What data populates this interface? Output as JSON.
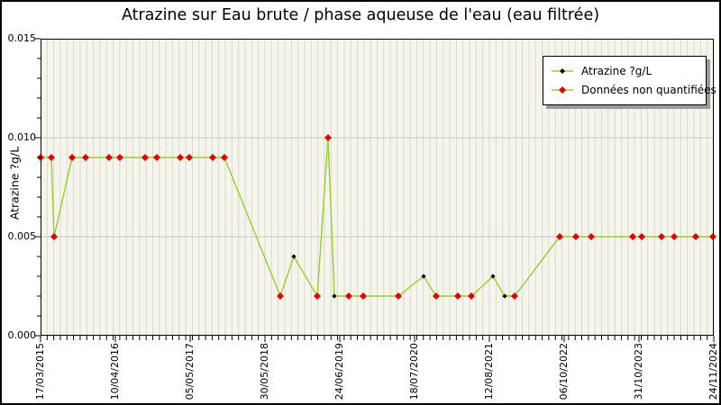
{
  "figure": {
    "title": "Atrazine sur Eau brute / phase aqueuse de l'eau (eau filtrée)",
    "y_axis_title": "Atrazine ?g/L"
  },
  "legend": {
    "items": [
      {
        "label": "Atrazine ?g/L",
        "marker": "black-diamond",
        "marker_color": "#000000",
        "line_color": "#9acd32"
      },
      {
        "label": "Données non quantifiées",
        "marker": "red-diamond",
        "marker_color": "#e60000",
        "line_color": "#9acd32"
      }
    ]
  },
  "chart_data": {
    "type": "line",
    "title": "Atrazine sur Eau brute / phase aqueuse de l'eau (eau filtrée)",
    "xlabel": "",
    "ylabel": "Atrazine ?g/L",
    "ylim": [
      0,
      0.015
    ],
    "y_tick_labels": [
      "0.000",
      "0.005",
      "0.010",
      "0.015"
    ],
    "x_tick_labels": [
      "17/03/2015",
      "10/04/2016",
      "05/05/2017",
      "30/05/2018",
      "24/06/2019",
      "18/07/2020",
      "12/08/2021",
      "06/10/2022",
      "31/10/2023",
      "24/11/2024"
    ],
    "legend_position": "top-right",
    "grid": {
      "vertical_minor_count": 102,
      "horizontal_gridline_values": [
        0.005,
        0.01
      ]
    },
    "colors": {
      "line": "#9acd32",
      "unquantified_marker": "#e60000",
      "quantified_marker": "#000000",
      "plot_background": "#f5f5ec",
      "vertical_gridline": "#d9d9ce",
      "horizontal_gridline": "#c8c8c8",
      "frame": "#000000"
    },
    "series_note": "red diamonds = données non quantifiées (non-quantified), black diamonds = quantified Atrazine ?g/L",
    "points": [
      {
        "x_frac": 0.0,
        "date_approx": "2015-03-17",
        "value": 0.009,
        "quantified": false
      },
      {
        "x_frac": 0.0161,
        "date_approx": "2015-05-13",
        "value": 0.009,
        "quantified": false
      },
      {
        "x_frac": 0.0201,
        "date_approx": "2015-05-27",
        "value": 0.005,
        "quantified": false
      },
      {
        "x_frac": 0.0469,
        "date_approx": "2015-08-30",
        "value": 0.009,
        "quantified": false
      },
      {
        "x_frac": 0.0669,
        "date_approx": "2015-11-09",
        "value": 0.009,
        "quantified": false
      },
      {
        "x_frac": 0.1017,
        "date_approx": "2016-03-12",
        "value": 0.009,
        "quantified": false
      },
      {
        "x_frac": 0.1178,
        "date_approx": "2016-05-08",
        "value": 0.009,
        "quantified": false
      },
      {
        "x_frac": 0.1553,
        "date_approx": "2016-09-18",
        "value": 0.009,
        "quantified": false
      },
      {
        "x_frac": 0.1727,
        "date_approx": "2016-11-18",
        "value": 0.009,
        "quantified": false
      },
      {
        "x_frac": 0.2075,
        "date_approx": "2017-03-22",
        "value": 0.009,
        "quantified": false
      },
      {
        "x_frac": 0.2209,
        "date_approx": "2017-05-08",
        "value": 0.009,
        "quantified": false
      },
      {
        "x_frac": 0.2557,
        "date_approx": "2017-09-08",
        "value": 0.009,
        "quantified": false
      },
      {
        "x_frac": 0.2731,
        "date_approx": "2017-11-09",
        "value": 0.009,
        "quantified": false
      },
      {
        "x_frac": 0.3561,
        "date_approx": "2018-08-30",
        "value": 0.002,
        "quantified": false
      },
      {
        "x_frac": 0.3762,
        "date_approx": "2018-11-10",
        "value": 0.004,
        "quantified": true
      },
      {
        "x_frac": 0.411,
        "date_approx": "2019-03-13",
        "value": 0.002,
        "quantified": false
      },
      {
        "x_frac": 0.4271,
        "date_approx": "2019-05-09",
        "value": 0.01,
        "quantified": false
      },
      {
        "x_frac": 0.4364,
        "date_approx": "2019-06-11",
        "value": 0.002,
        "quantified": true
      },
      {
        "x_frac": 0.4578,
        "date_approx": "2019-08-26",
        "value": 0.002,
        "quantified": false
      },
      {
        "x_frac": 0.4793,
        "date_approx": "2019-11-10",
        "value": 0.002,
        "quantified": false
      },
      {
        "x_frac": 0.5314,
        "date_approx": "2020-05-13",
        "value": 0.002,
        "quantified": false
      },
      {
        "x_frac": 0.5689,
        "date_approx": "2020-09-23",
        "value": 0.003,
        "quantified": true
      },
      {
        "x_frac": 0.5876,
        "date_approx": "2020-11-28",
        "value": 0.002,
        "quantified": false
      },
      {
        "x_frac": 0.6198,
        "date_approx": "2021-03-22",
        "value": 0.002,
        "quantified": false
      },
      {
        "x_frac": 0.6399,
        "date_approx": "2021-06-02",
        "value": 0.002,
        "quantified": false
      },
      {
        "x_frac": 0.672,
        "date_approx": "2021-09-23",
        "value": 0.003,
        "quantified": true
      },
      {
        "x_frac": 0.6894,
        "date_approx": "2021-11-24",
        "value": 0.002,
        "quantified": true
      },
      {
        "x_frac": 0.7041,
        "date_approx": "2022-01-15",
        "value": 0.002,
        "quantified": false
      },
      {
        "x_frac": 0.7711,
        "date_approx": "2022-09-10",
        "value": 0.005,
        "quantified": false
      },
      {
        "x_frac": 0.7952,
        "date_approx": "2022-12-04",
        "value": 0.005,
        "quantified": false
      },
      {
        "x_frac": 0.818,
        "date_approx": "2023-02-23",
        "value": 0.005,
        "quantified": false
      },
      {
        "x_frac": 0.8795,
        "date_approx": "2023-09-29",
        "value": 0.005,
        "quantified": false
      },
      {
        "x_frac": 0.8929,
        "date_approx": "2023-11-16",
        "value": 0.005,
        "quantified": false
      },
      {
        "x_frac": 0.9224,
        "date_approx": "2024-02-28",
        "value": 0.005,
        "quantified": false
      },
      {
        "x_frac": 0.9411,
        "date_approx": "2024-05-04",
        "value": 0.005,
        "quantified": false
      },
      {
        "x_frac": 0.9732,
        "date_approx": "2024-08-26",
        "value": 0.005,
        "quantified": false
      },
      {
        "x_frac": 0.9987,
        "date_approx": "2024-11-24",
        "value": 0.005,
        "quantified": false
      }
    ]
  }
}
